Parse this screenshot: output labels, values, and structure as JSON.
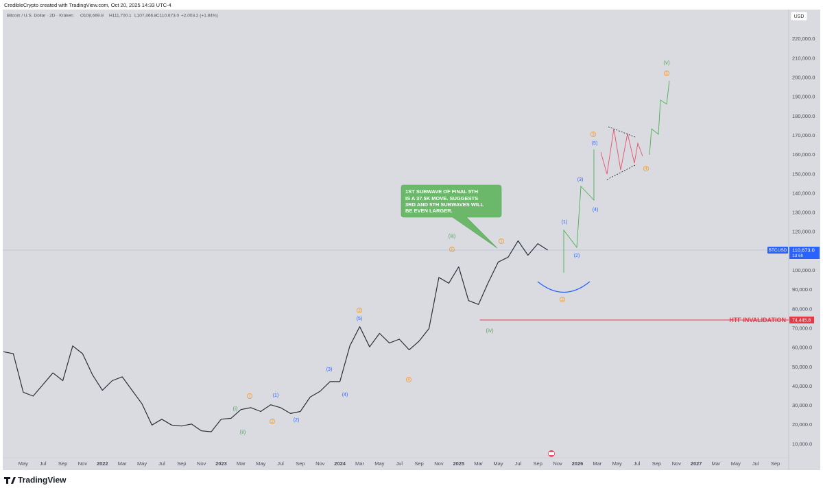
{
  "header": {
    "credit": "CredibleCrypto created with TradingView.com, Oct 20, 2025 14:33 UTC-4",
    "symbol": "Bitcoin / U.S. Dollar · 2D · Kraken",
    "open": "O108,669.8",
    "high": "H111,700.1",
    "low": "L107,466.8",
    "close": "C110,673.0",
    "change": "+2,003.2 (+1.84%)",
    "currency": "USD",
    "logo": "TradingView"
  },
  "chart_data": {
    "type": "line",
    "grid": false,
    "color": "#2a2e39",
    "x": [
      "2021-03",
      "2021-04",
      "2021-05",
      "2021-06",
      "2021-07",
      "2021-08",
      "2021-09",
      "2021-10",
      "2021-11",
      "2021-12",
      "2022-01",
      "2022-02",
      "2022-03",
      "2022-04",
      "2022-05",
      "2022-06",
      "2022-07",
      "2022-08",
      "2022-09",
      "2022-10",
      "2022-11",
      "2022-12",
      "2023-01",
      "2023-02",
      "2023-03",
      "2023-04",
      "2023-05",
      "2023-06",
      "2023-07",
      "2023-08",
      "2023-09",
      "2023-10",
      "2023-11",
      "2023-12",
      "2024-01",
      "2024-02",
      "2024-03",
      "2024-04",
      "2024-05",
      "2024-06",
      "2024-07",
      "2024-08",
      "2024-09",
      "2024-10",
      "2024-11",
      "2024-12",
      "2025-01",
      "2025-02",
      "2025-03",
      "2025-04",
      "2025-05",
      "2025-06",
      "2025-07",
      "2025-08",
      "2025-09",
      "2025-10"
    ],
    "series": [
      {
        "name": "BTCUSD",
        "color": "#2a2e39",
        "values": [
          58000,
          57000,
          37000,
          35000,
          41000,
          47000,
          43000,
          61000,
          57000,
          46000,
          38000,
          43000,
          45000,
          38000,
          31000,
          20000,
          23000,
          20000,
          19500,
          20500,
          17000,
          16500,
          23000,
          23500,
          28000,
          29000,
          27000,
          30500,
          29000,
          26000,
          27000,
          34500,
          37500,
          42500,
          42500,
          61000,
          71000,
          60500,
          67500,
          62500,
          64500,
          59000,
          63500,
          70000,
          96500,
          93500,
          102000,
          84500,
          82500,
          94000,
          104500,
          107000,
          115500,
          108000,
          114000,
          110673
        ]
      }
    ],
    "xlim": [
      "2021-03",
      "2027-10"
    ],
    "xticks": [
      {
        "value": "2021-05",
        "label": "May"
      },
      {
        "value": "2021-07",
        "label": "Jul"
      },
      {
        "value": "2021-09",
        "label": "Sep"
      },
      {
        "value": "2021-11",
        "label": "Nov"
      },
      {
        "value": "2022-01",
        "label": "2022"
      },
      {
        "value": "2022-03",
        "label": "Mar"
      },
      {
        "value": "2022-05",
        "label": "May"
      },
      {
        "value": "2022-07",
        "label": "Jul"
      },
      {
        "value": "2022-09",
        "label": "Sep"
      },
      {
        "value": "2022-11",
        "label": "Nov"
      },
      {
        "value": "2023-01",
        "label": "2023"
      },
      {
        "value": "2023-03",
        "label": "Mar"
      },
      {
        "value": "2023-05",
        "label": "May"
      },
      {
        "value": "2023-07",
        "label": "Jul"
      },
      {
        "value": "2023-09",
        "label": "Sep"
      },
      {
        "value": "2023-11",
        "label": "Nov"
      },
      {
        "value": "2024-01",
        "label": "2024"
      },
      {
        "value": "2024-03",
        "label": "Mar"
      },
      {
        "value": "2024-05",
        "label": "May"
      },
      {
        "value": "2024-07",
        "label": "Jul"
      },
      {
        "value": "2024-09",
        "label": "Sep"
      },
      {
        "value": "2024-11",
        "label": "Nov"
      },
      {
        "value": "2025-01",
        "label": "2025"
      },
      {
        "value": "2025-03",
        "label": "Mar"
      },
      {
        "value": "2025-05",
        "label": "May"
      },
      {
        "value": "2025-07",
        "label": "Jul"
      },
      {
        "value": "2025-09",
        "label": "Sep"
      },
      {
        "value": "2025-11",
        "label": "Nov"
      },
      {
        "value": "2026-01",
        "label": "2026"
      },
      {
        "value": "2026-03",
        "label": "Mar"
      },
      {
        "value": "2026-05",
        "label": "May"
      },
      {
        "value": "2026-07",
        "label": "Jul"
      },
      {
        "value": "2026-09",
        "label": "Sep"
      },
      {
        "value": "2026-11",
        "label": "Nov"
      },
      {
        "value": "2027-01",
        "label": "2027"
      },
      {
        "value": "2027-03",
        "label": "Mar"
      },
      {
        "value": "2027-05",
        "label": "May"
      },
      {
        "value": "2027-07",
        "label": "Jul"
      },
      {
        "value": "2027-09",
        "label": "Sep"
      }
    ],
    "ylim": [
      -3000,
      235000
    ],
    "yticks": [
      {
        "value": 10000,
        "label": "10,000.0"
      },
      {
        "value": 20000,
        "label": "20,000.0"
      },
      {
        "value": 30000,
        "label": "30,000.0"
      },
      {
        "value": 40000,
        "label": "40,000.0"
      },
      {
        "value": 50000,
        "label": "50,000.0"
      },
      {
        "value": 60000,
        "label": "60,000.0"
      },
      {
        "value": 70000,
        "label": "70,000.0"
      },
      {
        "value": 80000,
        "label": "80,000.0"
      },
      {
        "value": 90000,
        "label": "90,000.0"
      },
      {
        "value": 100000,
        "label": "100,000.0"
      },
      {
        "value": 110000,
        "label": "110,000.0"
      },
      {
        "value": 120000,
        "label": "120,000.0"
      },
      {
        "value": 130000,
        "label": "130,000.0"
      },
      {
        "value": 140000,
        "label": "140,000.0"
      },
      {
        "value": 150000,
        "label": "150,000.0"
      },
      {
        "value": 160000,
        "label": "160,000.0"
      },
      {
        "value": 170000,
        "label": "170,000.0"
      },
      {
        "value": 180000,
        "label": "180,000.0"
      },
      {
        "value": 190000,
        "label": "190,000.0"
      },
      {
        "value": 200000,
        "label": "200,000.0"
      },
      {
        "value": 210000,
        "label": "210,000.0"
      },
      {
        "value": 220000,
        "label": "220,000.0"
      }
    ],
    "current_price": {
      "value": 110673.0,
      "label": "110,673.0",
      "countdown": "1d 6h",
      "symbol": "BTCUSD"
    },
    "invalidation": {
      "value": 74445.8,
      "label": "74,445.8",
      "text": "HTF INVALIDATION"
    },
    "callout": [
      "1ST SUBWAVE OF FINAL 5TH",
      "IS A 37.5K MOVE. SUGGESTS",
      "3RD AND 5TH SUBWAVES WILL",
      "BE EVEN LARGER."
    ],
    "waves_green": [
      "(i)",
      "(ii)",
      "(iii)",
      "(iv)",
      "(v)"
    ],
    "waves_orange": [
      "1",
      "2",
      "3",
      "4",
      "5",
      "1",
      "2",
      "3",
      "4",
      "5"
    ],
    "waves_blue": [
      "(1)",
      "(2)",
      "(3)",
      "(4)",
      "(5)",
      "(1)",
      "(2)",
      "(3)",
      "(4)",
      "(5)"
    ]
  }
}
